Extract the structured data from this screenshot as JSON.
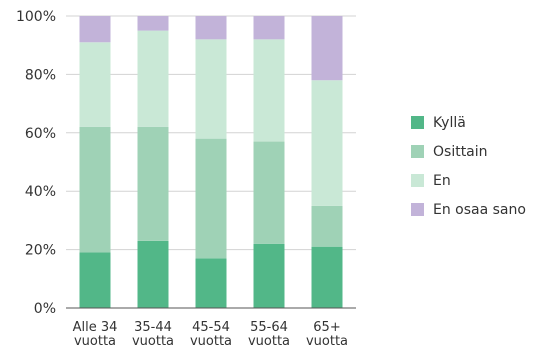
{
  "chart_data": {
    "type": "bar",
    "stacked": true,
    "orientation": "vertical",
    "categories": [
      [
        "Alle 34",
        "vuotta"
      ],
      [
        "35-44",
        "vuotta"
      ],
      [
        "45-54",
        "vuotta"
      ],
      [
        "55-64",
        "vuotta"
      ],
      [
        "65+",
        "vuotta"
      ]
    ],
    "series": [
      {
        "name": "Kyllä",
        "color": "#52b788",
        "values": [
          19,
          23,
          17,
          22,
          21
        ]
      },
      {
        "name": "Osittain",
        "color": "#9fd2b6",
        "values": [
          43,
          39,
          41,
          35,
          14
        ]
      },
      {
        "name": "En",
        "color": "#c9e8d6",
        "values": [
          29,
          33,
          34,
          35,
          43
        ]
      },
      {
        "name": "En osaa sano",
        "color": "#c2b3d9",
        "values": [
          9,
          5,
          8,
          8,
          22
        ]
      }
    ],
    "yticks": [
      "0%",
      "20%",
      "40%",
      "60%",
      "80%",
      "100%"
    ],
    "ylim": [
      0,
      100
    ],
    "grid": true,
    "legend": "right"
  }
}
